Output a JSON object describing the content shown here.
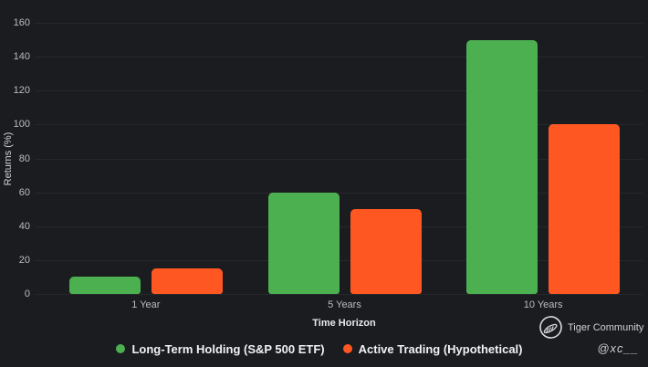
{
  "chart_data": {
    "type": "bar",
    "categories": [
      "1 Year",
      "5 Years",
      "10 Years"
    ],
    "series": [
      {
        "name": "Long-Term Holding (S&P 500 ETF)",
        "values": [
          10,
          60,
          150
        ],
        "color": "#4caf50"
      },
      {
        "name": "Active Trading (Hypothetical)",
        "values": [
          15,
          50,
          100
        ],
        "color": "#ff5722"
      }
    ],
    "xlabel": "Time Horizon",
    "ylabel": "Returns (%)",
    "ylim": [
      0,
      160
    ],
    "yticks": [
      0,
      20,
      40,
      60,
      80,
      100,
      120,
      140,
      160
    ],
    "grid": "horizontal",
    "legend_position": "bottom"
  },
  "branding": {
    "community_name": "Tiger Community",
    "handle": "@xc__"
  },
  "theme": {
    "background": "#1a1c1f",
    "gridline": "#26282c",
    "tick_text": "#b9bdc3",
    "axis_label_text": "#e8eaec",
    "legend_text": "#f0f2f4",
    "bar_green": "#4caf50",
    "bar_orange": "#ff5722"
  }
}
